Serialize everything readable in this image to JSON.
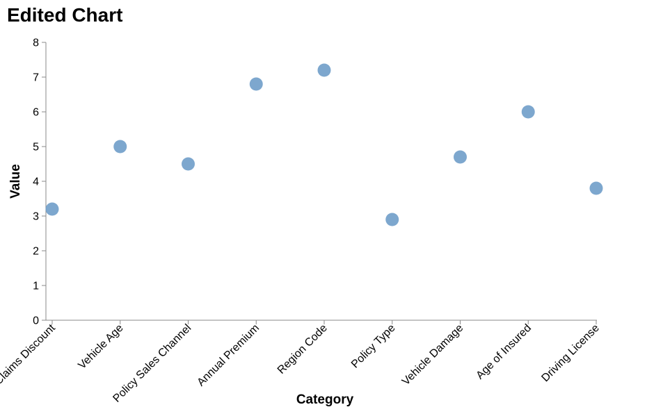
{
  "chart_data": {
    "type": "scatter",
    "title": "Edited Chart",
    "xlabel": "Category",
    "ylabel": "Value",
    "categories": [
      "No Claims Discount",
      "Vehicle Age",
      "Policy Sales Channel",
      "Annual Premium",
      "Region Code",
      "Policy Type",
      "Vehicle Damage",
      "Age of Insured",
      "Driving License"
    ],
    "values": [
      3.2,
      5.0,
      4.5,
      6.8,
      7.2,
      2.9,
      4.7,
      6.0,
      3.8
    ],
    "ylim": [
      0,
      8
    ],
    "yticks": [
      "0",
      "1",
      "2",
      "3",
      "4",
      "5",
      "6",
      "7",
      "8"
    ],
    "grid": false,
    "point_color": "#6f9dc9"
  }
}
